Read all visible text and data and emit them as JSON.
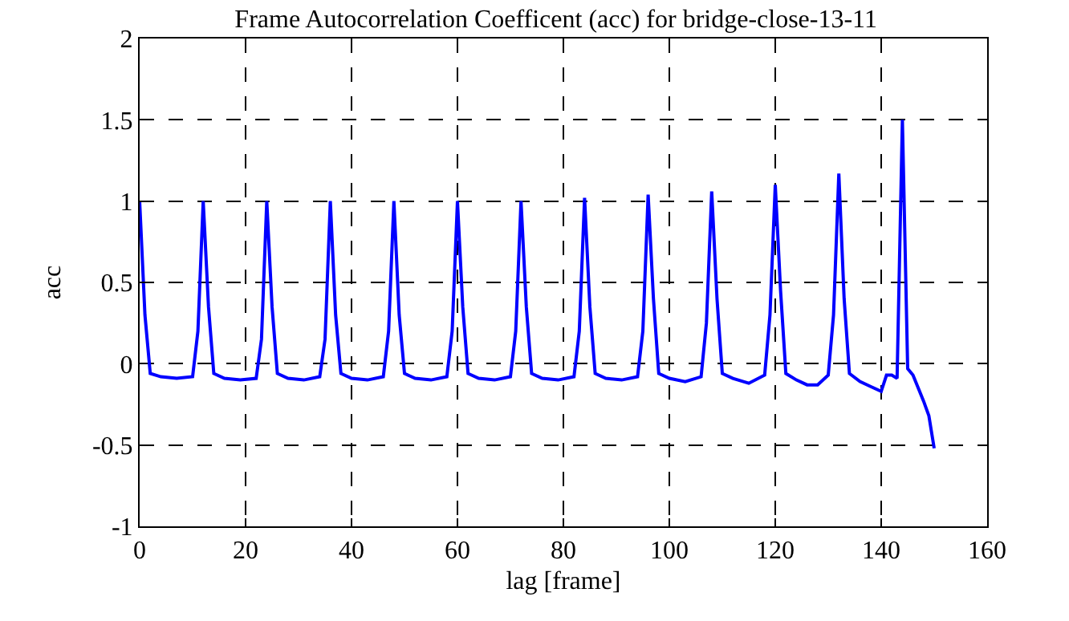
{
  "chart_data": {
    "type": "line",
    "title": "Frame Autocorrelation Coefficent (acc) for bridge-close-13-11",
    "xlabel": "lag [frame]",
    "ylabel": "acc",
    "x": [
      0,
      1,
      2,
      4,
      7,
      10,
      11,
      12,
      13,
      14,
      16,
      19,
      22,
      23,
      24,
      25,
      26,
      28,
      31,
      34,
      35,
      36,
      37,
      38,
      40,
      43,
      46,
      47,
      48,
      49,
      50,
      52,
      55,
      58,
      59,
      60,
      61,
      62,
      64,
      67,
      70,
      71,
      72,
      73,
      74,
      76,
      79,
      82,
      83,
      84,
      85,
      86,
      88,
      91,
      94,
      95,
      96,
      97,
      98,
      100,
      103,
      106,
      107,
      108,
      109,
      110,
      112,
      115,
      118,
      119,
      120,
      121,
      122,
      124,
      126,
      128,
      130,
      131,
      132,
      133,
      134,
      136,
      138,
      140,
      141,
      142,
      143,
      144,
      145,
      146,
      147,
      148,
      149,
      150
    ],
    "series": [
      {
        "color": "#0000ff",
        "values": [
          1.0,
          0.3,
          -0.06,
          -0.08,
          -0.09,
          -0.08,
          0.2,
          1.0,
          0.35,
          -0.06,
          -0.09,
          -0.1,
          -0.09,
          0.15,
          1.0,
          0.35,
          -0.06,
          -0.09,
          -0.1,
          -0.08,
          0.15,
          1.0,
          0.3,
          -0.06,
          -0.09,
          -0.1,
          -0.08,
          0.2,
          1.0,
          0.3,
          -0.06,
          -0.09,
          -0.1,
          -0.08,
          0.2,
          1.0,
          0.35,
          -0.06,
          -0.09,
          -0.1,
          -0.08,
          0.2,
          1.0,
          0.35,
          -0.06,
          -0.09,
          -0.1,
          -0.08,
          0.2,
          1.02,
          0.35,
          -0.06,
          -0.09,
          -0.1,
          -0.08,
          0.2,
          1.04,
          0.4,
          -0.06,
          -0.09,
          -0.11,
          -0.08,
          0.25,
          1.06,
          0.4,
          -0.06,
          -0.09,
          -0.12,
          -0.07,
          0.3,
          1.1,
          0.45,
          -0.06,
          -0.1,
          -0.13,
          -0.13,
          -0.07,
          0.3,
          1.17,
          0.4,
          -0.06,
          -0.11,
          -0.14,
          -0.17,
          -0.07,
          -0.07,
          -0.09,
          1.5,
          -0.03,
          -0.07,
          -0.15,
          -0.23,
          -0.32,
          -0.52
        ]
      }
    ],
    "xlim": [
      0,
      160
    ],
    "xticks": [
      0,
      20,
      40,
      60,
      80,
      100,
      120,
      140,
      160
    ],
    "ylim": [
      -1,
      2
    ],
    "yticks": [
      -1,
      -0.5,
      0,
      0.5,
      1,
      1.5,
      2
    ],
    "grid": true,
    "line_style": "solid",
    "marker": "none",
    "legend": false
  }
}
